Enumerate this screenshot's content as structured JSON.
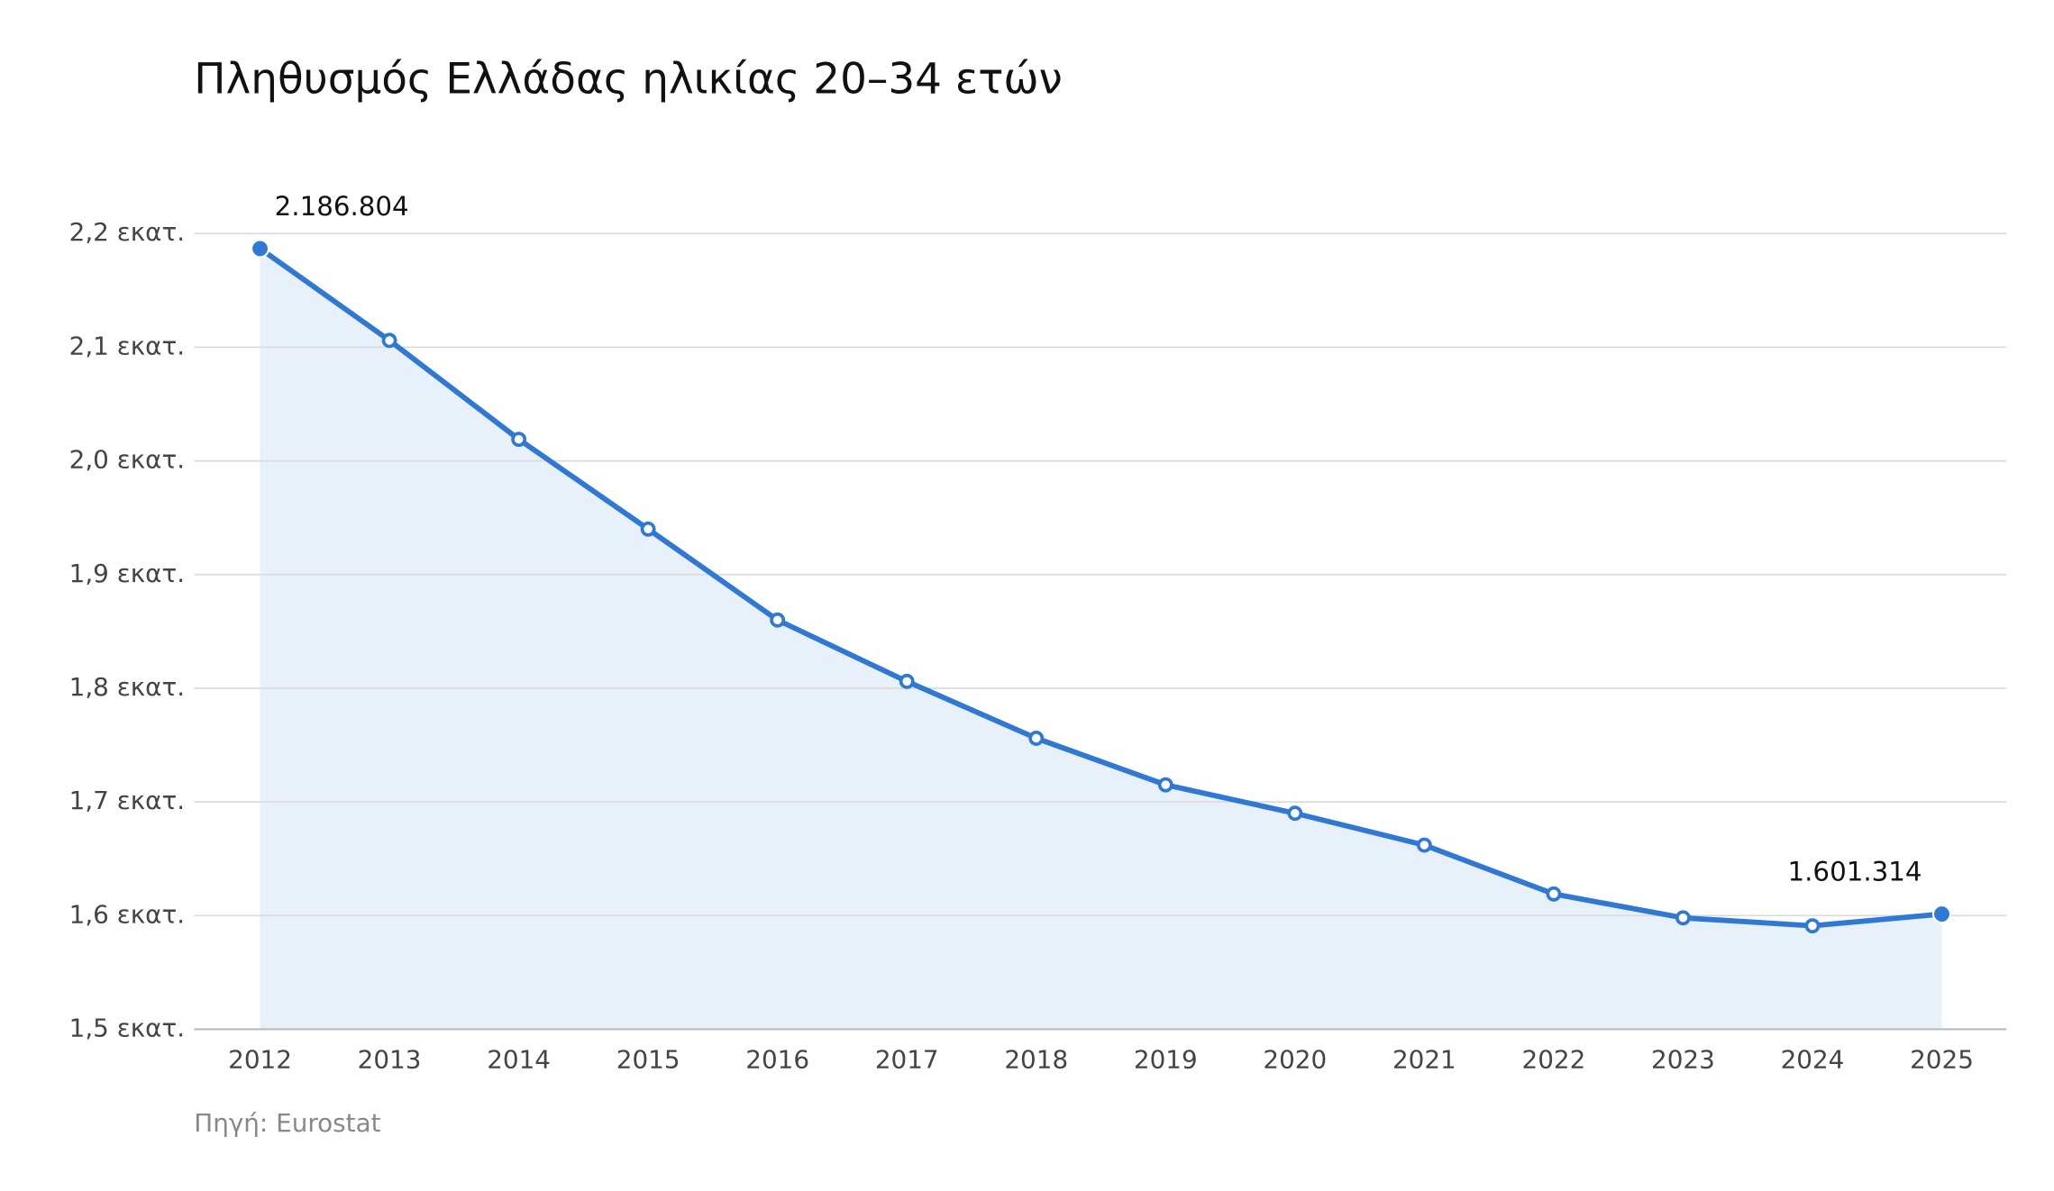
{
  "chart_data": {
    "type": "line",
    "title": "Πληθυσμός Ελλάδας ηλικίας 20–34 ετών",
    "categories": [
      "2012",
      "2013",
      "2014",
      "2015",
      "2016",
      "2017",
      "2018",
      "2019",
      "2020",
      "2021",
      "2022",
      "2023",
      "2024",
      "2025"
    ],
    "values": [
      2186804,
      2106000,
      2019000,
      1940000,
      1860000,
      1806000,
      1756000,
      1715000,
      1690000,
      1662000,
      1619000,
      1598000,
      1591000,
      1601314
    ],
    "value_labels": [
      "2.186.804",
      null,
      null,
      null,
      null,
      null,
      null,
      null,
      null,
      null,
      null,
      null,
      null,
      "1.601.314"
    ],
    "color": "#2f78d3",
    "area": true,
    "area_color": "#e8f0fa",
    "ylim": [
      1500000,
      2200000
    ],
    "yticks": [
      {
        "value": 1500000,
        "label": "1,5 εκατ."
      },
      {
        "value": 1600000,
        "label": "1,6 εκατ."
      },
      {
        "value": 1700000,
        "label": "1,7 εκατ."
      },
      {
        "value": 1800000,
        "label": "1,8 εκατ."
      },
      {
        "value": 1900000,
        "label": "1,9 εκατ."
      },
      {
        "value": 2000000,
        "label": "2,0 εκατ."
      },
      {
        "value": 2100000,
        "label": "2,1 εκατ."
      },
      {
        "value": 2200000,
        "label": "2,2 εκατ."
      }
    ],
    "grid": true,
    "source": "Πηγή: Eurostat"
  }
}
